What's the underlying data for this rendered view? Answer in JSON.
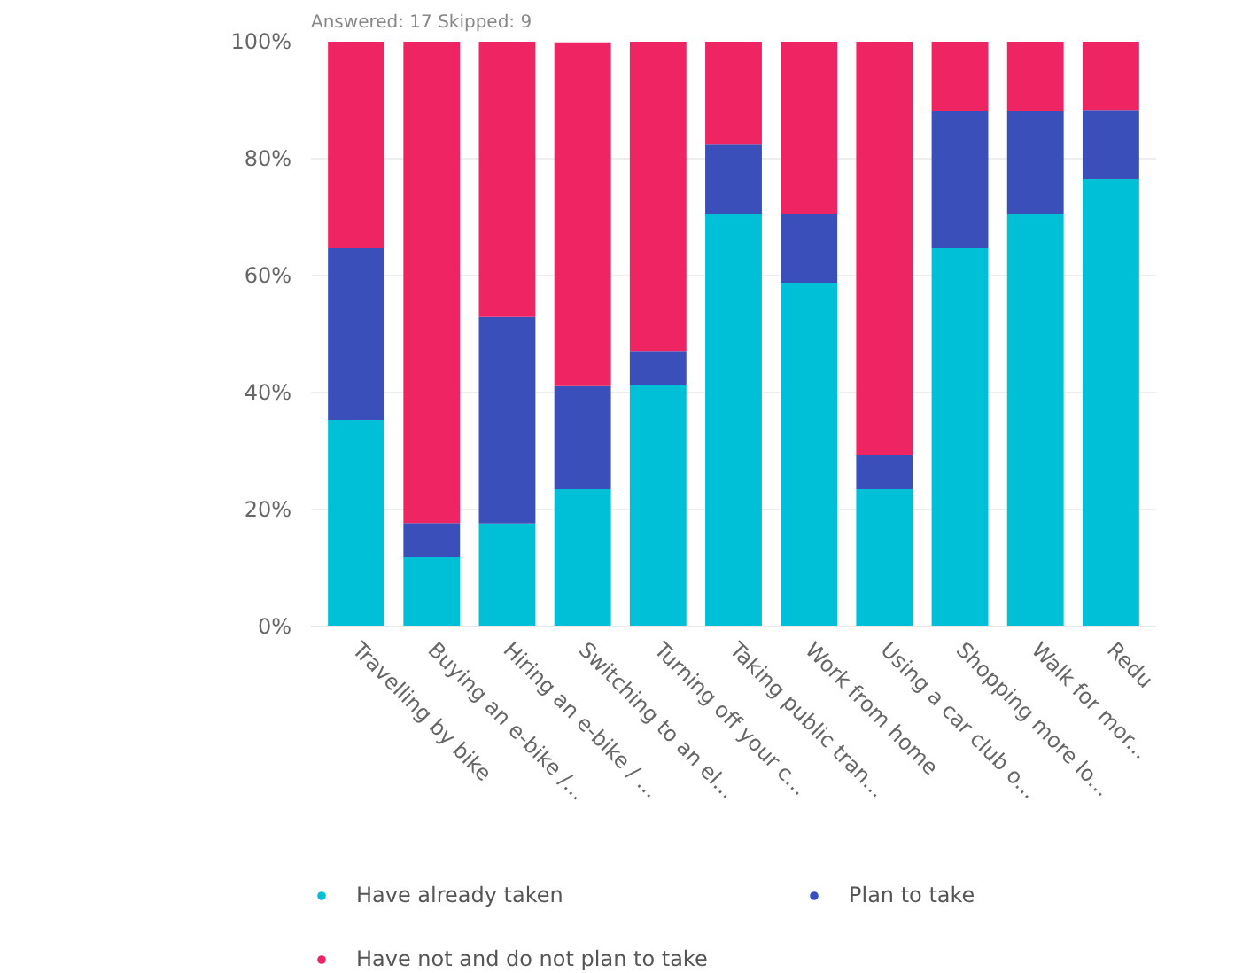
{
  "chart_data": {
    "type": "bar",
    "stacked": true,
    "annotations": [
      "Answered: 17",
      "Skipped: 9"
    ],
    "categories": [
      "Travelling by bike",
      "Buying an e-bike /...",
      "Hiring an e-bike / ...",
      "Switching to an el...",
      "Turning off your c...",
      "Taking public tran...",
      "Work from home",
      "Using a car club o...",
      "Shopping more lo...",
      "Walk for mor...",
      "Redu"
    ],
    "series": [
      {
        "name": "Have already taken",
        "color": "#00c0d8",
        "values": [
          35.3,
          11.8,
          17.6,
          23.5,
          41.2,
          70.6,
          58.8,
          23.5,
          64.7,
          70.6,
          76.5
        ]
      },
      {
        "name": "Plan to take",
        "color": "#3b4fbb",
        "values": [
          29.4,
          5.9,
          35.3,
          17.6,
          5.9,
          11.8,
          11.8,
          5.9,
          23.5,
          17.6,
          11.8
        ]
      },
      {
        "name": "Have not and do not plan to take",
        "color": "#ef2563",
        "values": [
          35.3,
          82.4,
          47.1,
          58.8,
          52.9,
          17.6,
          29.4,
          70.6,
          11.8,
          11.8,
          11.8
        ]
      }
    ],
    "ylim": [
      0,
      100
    ],
    "yticks": [
      {
        "value": 0,
        "label": "0%"
      },
      {
        "value": 20,
        "label": "20%"
      },
      {
        "value": 40,
        "label": "40%"
      },
      {
        "value": 60,
        "label": "60%"
      },
      {
        "value": 80,
        "label": "80%"
      },
      {
        "value": 100,
        "label": "100%"
      }
    ],
    "grid": "y",
    "legend": "bottom"
  }
}
